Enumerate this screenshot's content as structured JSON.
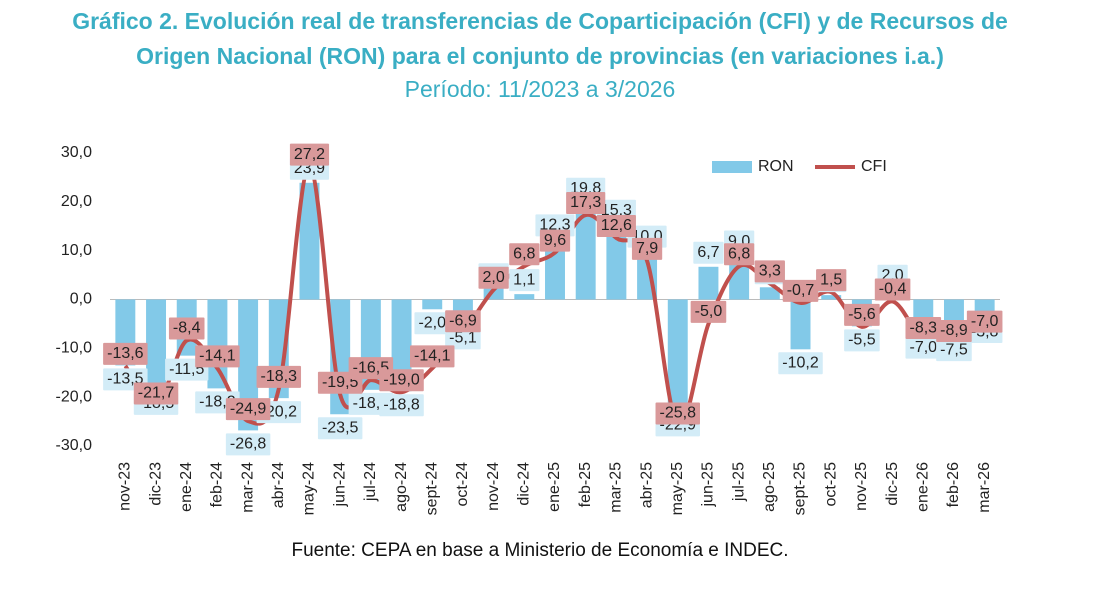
{
  "chart_data": {
    "type": "bar_line",
    "title": "Gráfico 2. Evolución real de transferencias de Coparticipación (CFI) y de Recursos de Origen Nacional (RON) para el conjunto de provincias (en variaciones i.a.)",
    "subtitle": "Período: 11/2023 a 3/2026",
    "source": "Fuente: CEPA en base a Ministerio de Economía e INDEC.",
    "categories": [
      "nov-23",
      "dic-23",
      "ene-24",
      "feb-24",
      "mar-24",
      "abr-24",
      "may-24",
      "jun-24",
      "jul-24",
      "ago-24",
      "sept-24",
      "oct-24",
      "nov-24",
      "dic-24",
      "ene-25",
      "feb-25",
      "mar-25",
      "abr-25",
      "may-25",
      "jun-25",
      "jul-25",
      "ago-25",
      "sept-25",
      "oct-25",
      "nov-25",
      "dic-25",
      "ene-26",
      "feb-26",
      "mar-26"
    ],
    "series": [
      {
        "name": "RON",
        "kind": "bar",
        "color": "#82c9e8",
        "label_bg": "#d3ecf7",
        "values": [
          -13.5,
          -18.5,
          -11.5,
          -18.2,
          -26.8,
          -20.2,
          23.9,
          -23.5,
          -18.5,
          -18.8,
          -2.0,
          -5.1,
          2.3,
          1.1,
          12.3,
          19.8,
          15.3,
          10.0,
          -22.9,
          6.7,
          9.0,
          2.5,
          -10.2,
          0.9,
          -5.5,
          2.0,
          -7.0,
          -7.5,
          -3.8
        ],
        "value_labels": [
          "-13,5",
          "-18,5",
          "-11,5",
          "-18,2",
          "-26,8",
          "-20,2",
          "23,9",
          "-23,5",
          "-18,5",
          "-18,8",
          "-2,0",
          "-5,1",
          "2,3",
          "1,1",
          "12,3",
          "19,8",
          "15,3",
          "10,0",
          "-22,9",
          "6,7",
          "9,0",
          "2,5",
          "-10,2",
          "0,9",
          "-5,5",
          "2,0",
          "-7,0",
          "-7,5",
          "-3,8"
        ]
      },
      {
        "name": "CFI",
        "kind": "line",
        "color": "#c0504d",
        "label_bg": "#d9999a",
        "values": [
          -13.6,
          -21.7,
          -8.4,
          -14.1,
          -24.9,
          -18.3,
          27.2,
          -19.5,
          -16.5,
          -19.0,
          -14.1,
          -6.9,
          2.0,
          6.8,
          9.6,
          17.3,
          12.6,
          7.9,
          -25.8,
          -5.0,
          6.8,
          3.3,
          -0.7,
          1.5,
          -5.6,
          -0.4,
          -8.3,
          -8.9,
          -7.0
        ],
        "value_labels": [
          "-13,6",
          "-21,7",
          "-8,4",
          "-14,1",
          "-24,9",
          "-18,3",
          "27,2",
          "-19,5",
          "-16,5",
          "-19,0",
          "-14,1",
          "-6,9",
          "2,0",
          "6,8",
          "9,6",
          "17,3",
          "12,6",
          "7,9",
          "-25,8",
          "-5,0",
          "6,8",
          "3,3",
          "-0,7",
          "1,5",
          "-5,6",
          "-0,4",
          "-8,3",
          "-8,9",
          "-7,0"
        ]
      }
    ],
    "ylim": [
      -30,
      30
    ],
    "yticks": [
      {
        "value": -30,
        "label": "-30,0"
      },
      {
        "value": -20,
        "label": "-20,0"
      },
      {
        "value": -10,
        "label": "-10,0"
      },
      {
        "value": 0,
        "label": "0,0"
      },
      {
        "value": 10,
        "label": "10,0"
      },
      {
        "value": 20,
        "label": "20,0"
      },
      {
        "value": 30,
        "label": "30,0"
      }
    ],
    "grid": false,
    "legend": "top-right"
  }
}
